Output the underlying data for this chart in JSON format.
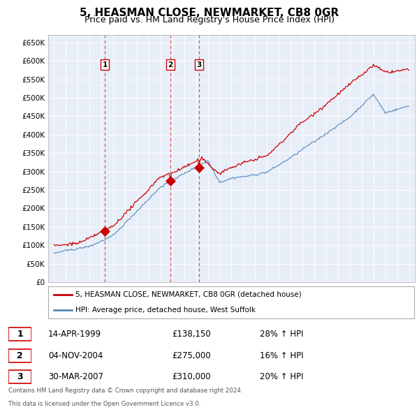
{
  "title": "5, HEASMAN CLOSE, NEWMARKET, CB8 0GR",
  "subtitle": "Price paid vs. HM Land Registry's House Price Index (HPI)",
  "legend_line1": "5, HEASMAN CLOSE, NEWMARKET, CB8 0GR (detached house)",
  "legend_line2": "HPI: Average price, detached house, West Suffolk",
  "footer1": "Contains HM Land Registry data © Crown copyright and database right 2024.",
  "footer2": "This data is licensed under the Open Government Licence v3.0.",
  "sales": [
    {
      "num": 1,
      "date": "14-APR-1999",
      "price": 138150,
      "hpi_pct": "28% ↑ HPI",
      "year": 1999.28
    },
    {
      "num": 2,
      "date": "04-NOV-2004",
      "price": 275000,
      "hpi_pct": "16% ↑ HPI",
      "year": 2004.84
    },
    {
      "num": 3,
      "date": "30-MAR-2007",
      "price": 310000,
      "hpi_pct": "20% ↑ HPI",
      "year": 2007.24
    }
  ],
  "ylim": [
    0,
    670000
  ],
  "yticks": [
    0,
    50000,
    100000,
    150000,
    200000,
    250000,
    300000,
    350000,
    400000,
    450000,
    500000,
    550000,
    600000,
    650000
  ],
  "xlim_start": 1994.5,
  "xlim_end": 2025.5,
  "red_color": "#cc0000",
  "blue_color": "#5588bb",
  "chart_bg": "#e8eef8",
  "grid_color": "#ffffff",
  "title_fontsize": 11,
  "subtitle_fontsize": 9
}
